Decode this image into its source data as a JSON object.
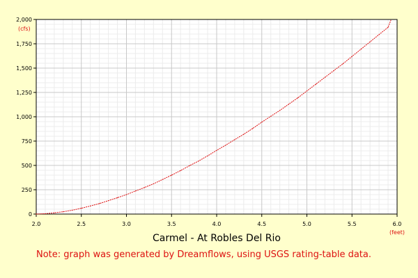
{
  "colors": {
    "background": "#ffffcc",
    "plot_background": "#ffffff",
    "major_grid": "#c8c8c8",
    "minor_grid": "#ececec",
    "series": "#dd1111",
    "unit_text": "#dd1111",
    "note_text": "#dd1111"
  },
  "note": "Note: graph was generated by Dreamflows, using USGS rating-table data.",
  "chart_data": {
    "type": "line",
    "title": "",
    "xlabel": "Carmel - At Robles Del Rio",
    "ylabel": "",
    "x_unit": "(feet)",
    "y_unit": "(cfs)",
    "xlim": [
      2.0,
      6.0
    ],
    "ylim": [
      0,
      2000
    ],
    "x_ticks": [
      2.0,
      2.5,
      3.0,
      3.5,
      4.0,
      4.5,
      5.0,
      5.5,
      6.0
    ],
    "x_tick_labels": [
      "2.0",
      "2.5",
      "3.0",
      "3.5",
      "4.0",
      "4.5",
      "5.0",
      "5.5",
      "6.0"
    ],
    "y_ticks": [
      0,
      250,
      500,
      750,
      1000,
      1250,
      1500,
      1750,
      2000
    ],
    "y_tick_labels": [
      "0",
      "250",
      "500",
      "750",
      "1,000",
      "1,250",
      "1,500",
      "1,750",
      "2,000"
    ],
    "grid": true,
    "minor_grid": true,
    "legend": "none",
    "series": [
      {
        "x": [
          2.0,
          2.1,
          2.2,
          2.3,
          2.4,
          2.5,
          2.6,
          2.7,
          2.8,
          2.9,
          3.0,
          3.1,
          3.2,
          3.3,
          3.4,
          3.5,
          3.6,
          3.7,
          3.8,
          3.9,
          4.0,
          4.1,
          4.2,
          4.3,
          4.4,
          4.5,
          4.6,
          4.7,
          4.8,
          4.9,
          5.0,
          5.1,
          5.2,
          5.3,
          5.4,
          5.5,
          5.6,
          5.7,
          5.8,
          5.9,
          5.93
        ],
        "y": [
          0,
          4,
          12,
          24,
          40,
          60,
          83,
          108,
          138,
          168,
          200,
          237,
          273,
          311,
          355,
          400,
          447,
          498,
          545,
          598,
          655,
          708,
          765,
          820,
          880,
          945,
          1005,
          1065,
          1130,
          1195,
          1265,
          1335,
          1405,
          1475,
          1545,
          1620,
          1695,
          1770,
          1845,
          1920,
          1990
        ]
      }
    ]
  }
}
